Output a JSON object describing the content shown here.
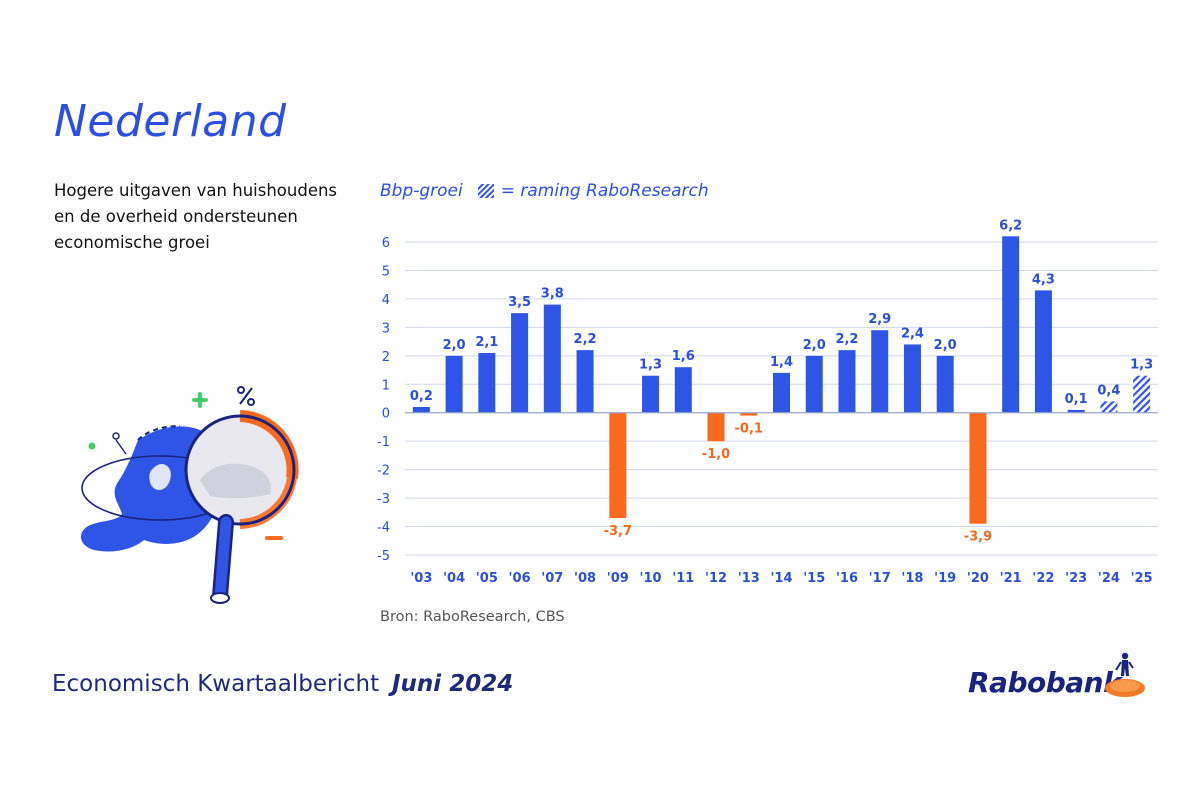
{
  "header": {
    "title": "Nederland",
    "subtitle_lines": [
      "Hogere uitgaven van huishoudens",
      "en de overheid ondersteunen",
      "economische groei"
    ]
  },
  "legend": {
    "series_label": "Bbp-groei",
    "forecast_label": "= raming RaboResearch"
  },
  "source": "Bron: RaboResearch, CBS",
  "footer": {
    "publication": "Economisch Kwartaalbericht",
    "date": "Juni 2024",
    "brand": "Rabobank"
  },
  "colors": {
    "positive": "#2f55e6",
    "negative": "#fa6a1e",
    "label_positive": "#2b4fd6",
    "label_negative": "#f06a1e",
    "grid": "#cfd8ec",
    "axis_text": "#2b4fd6"
  },
  "icons": [
    "magnifier-map-icon",
    "plus-icon",
    "percent-icon",
    "minus-icon",
    "rabobank-logo-icon"
  ],
  "chart_data": {
    "type": "bar",
    "categories": [
      "'03",
      "'04",
      "'05",
      "'06",
      "'07",
      "'08",
      "'09",
      "'10",
      "'11",
      "'12",
      "'13",
      "'14",
      "'15",
      "'16",
      "'17",
      "'18",
      "'19",
      "'20",
      "'21",
      "'22",
      "'23",
      "'24",
      "'25"
    ],
    "values": [
      0.2,
      2.0,
      2.1,
      3.5,
      3.8,
      2.2,
      -3.7,
      1.3,
      1.6,
      -1.0,
      -0.1,
      1.4,
      2.0,
      2.2,
      2.9,
      2.4,
      2.0,
      -3.9,
      6.2,
      4.3,
      0.1,
      0.4,
      1.3
    ],
    "value_labels": [
      "0,2",
      "2,0",
      "2,1",
      "3,5",
      "3,8",
      "2,2",
      "-3,7",
      "1,3",
      "1,6",
      "-1,0",
      "-0,1",
      "1,4",
      "2,0",
      "2,2",
      "2,9",
      "2,4",
      "2,0",
      "-3,9",
      "6,2",
      "4,3",
      "0,1",
      "0,4",
      "1,3"
    ],
    "forecast": [
      false,
      false,
      false,
      false,
      false,
      false,
      false,
      false,
      false,
      false,
      false,
      false,
      false,
      false,
      false,
      false,
      false,
      false,
      false,
      false,
      false,
      true,
      true
    ],
    "ylim": [
      -5,
      6
    ],
    "yticks": [
      6,
      5,
      4,
      3,
      2,
      1,
      0,
      -1,
      -2,
      -3,
      -4,
      -5
    ],
    "ytick_labels": [
      "6",
      "5",
      "4",
      "3",
      "2",
      "1",
      "0",
      "-1",
      "-2",
      "-3",
      "-4",
      "-5"
    ],
    "grid": true,
    "legend": "top-left"
  }
}
